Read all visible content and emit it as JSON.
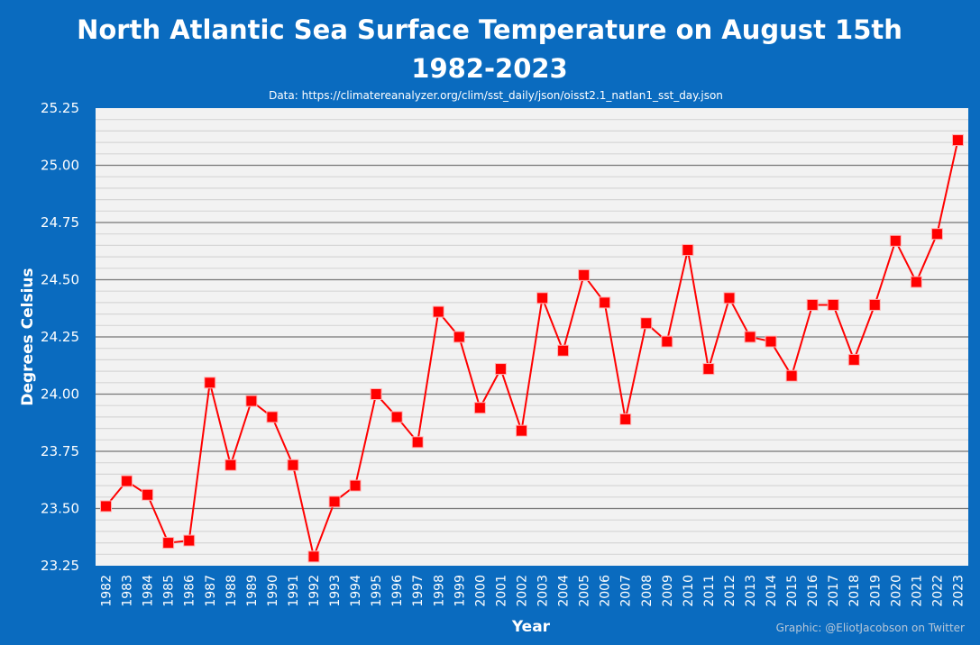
{
  "title_line1": "North Atlantic Sea Surface Temperature on August 15th",
  "title_line2": "1982-2023",
  "subtitle": "Data: https://climatereanalyzer.org/clim/sst_daily/json/oisst2.1_natlan1_sst_day.json",
  "credit": "Graphic: @EliotJacobson on Twitter",
  "colors": {
    "background": "#0a6bbf",
    "plot_area": "#f2f2f2",
    "series": "#ff0000"
  },
  "chart_data": {
    "type": "line",
    "title": "North Atlantic Sea Surface Temperature on August 15th 1982-2023",
    "xlabel": "Year",
    "ylabel": "Degrees Celsius",
    "ylim": [
      23.25,
      25.25
    ],
    "y_ticks": [
      "23.25",
      "23.50",
      "23.75",
      "24.00",
      "24.25",
      "24.50",
      "24.75",
      "25.00",
      "25.25"
    ],
    "grid": true,
    "x": [
      "1982",
      "1983",
      "1984",
      "1985",
      "1986",
      "1987",
      "1988",
      "1989",
      "1990",
      "1991",
      "1992",
      "1993",
      "1994",
      "1995",
      "1996",
      "1997",
      "1998",
      "1999",
      "2000",
      "2001",
      "2002",
      "2003",
      "2004",
      "2005",
      "2006",
      "2007",
      "2008",
      "2009",
      "2010",
      "2011",
      "2012",
      "2013",
      "2014",
      "2015",
      "2016",
      "2017",
      "2018",
      "2019",
      "2020",
      "2021",
      "2022",
      "2023"
    ],
    "series": [
      {
        "values": [
          23.51,
          23.62,
          23.56,
          23.35,
          23.36,
          24.05,
          23.69,
          23.97,
          23.9,
          23.69,
          23.29,
          23.53,
          23.6,
          24.0,
          23.9,
          23.79,
          24.36,
          24.25,
          23.94,
          24.11,
          23.84,
          24.42,
          24.19,
          24.52,
          24.4,
          23.89,
          24.31,
          24.23,
          24.63,
          24.11,
          24.42,
          24.25,
          24.23,
          24.08,
          24.39,
          24.39,
          24.15,
          24.39,
          24.67,
          24.49,
          24.7,
          25.11
        ]
      }
    ]
  }
}
